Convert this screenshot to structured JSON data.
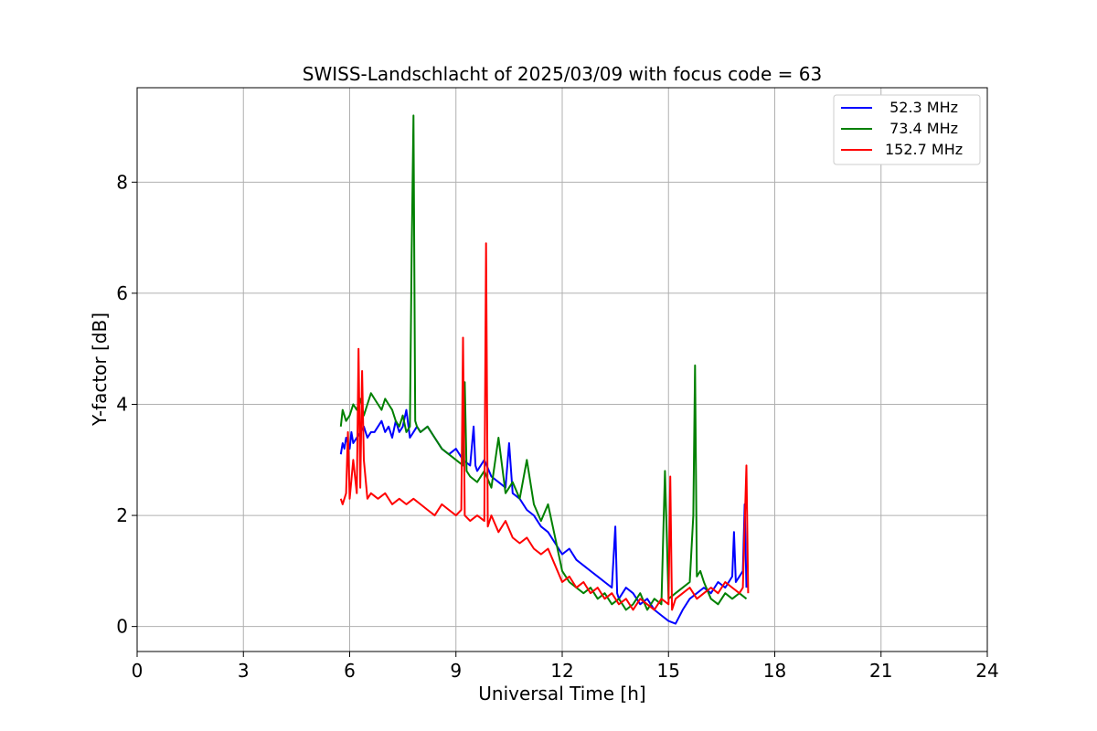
{
  "chart_data": {
    "type": "line",
    "title": "SWISS-Landschlacht of 2025/03/09 with focus code = 63",
    "xlabel": "Universal Time [h]",
    "ylabel": "Y-factor [dB]",
    "xlim": [
      0,
      24
    ],
    "ylim": [
      -0.45,
      9.7
    ],
    "xticks": [
      0,
      3,
      6,
      9,
      12,
      15,
      18,
      21,
      24
    ],
    "yticks": [
      0,
      2,
      4,
      6,
      8
    ],
    "grid": true,
    "legend_position": "top-right",
    "series": [
      {
        "name": " 52.3 MHz",
        "color": "#0000ff",
        "x": [
          5.75,
          5.8,
          5.85,
          5.9,
          5.95,
          6.0,
          6.05,
          6.1,
          6.2,
          6.3,
          6.4,
          6.5,
          6.6,
          6.7,
          6.8,
          6.9,
          7.0,
          7.1,
          7.2,
          7.3,
          7.4,
          7.5,
          7.6,
          7.7,
          7.8,
          7.9,
          8.0,
          8.2,
          8.4,
          8.6,
          8.8,
          9.0,
          9.2,
          9.4,
          9.5,
          9.55,
          9.6,
          9.8,
          10.0,
          10.2,
          10.4,
          10.5,
          10.6,
          10.8,
          11.0,
          11.2,
          11.4,
          11.6,
          11.8,
          12.0,
          12.2,
          12.4,
          12.6,
          12.8,
          13.0,
          13.2,
          13.4,
          13.5,
          13.55,
          13.6,
          13.8,
          14.0,
          14.2,
          14.4,
          14.6,
          14.8,
          15.0,
          15.2,
          15.4,
          15.6,
          15.8,
          16.0,
          16.2,
          16.4,
          16.6,
          16.8,
          16.85,
          16.9,
          17.0,
          17.1,
          17.15,
          17.2
        ],
        "y": [
          3.1,
          3.3,
          3.2,
          3.4,
          3.3,
          3.2,
          3.5,
          3.3,
          3.4,
          3.5,
          3.6,
          3.4,
          3.5,
          3.5,
          3.6,
          3.7,
          3.5,
          3.6,
          3.4,
          3.7,
          3.5,
          3.6,
          3.9,
          3.4,
          3.5,
          3.6,
          3.5,
          3.6,
          3.4,
          3.2,
          3.1,
          3.2,
          3.0,
          2.9,
          3.6,
          2.9,
          2.8,
          3.0,
          2.7,
          2.6,
          2.5,
          3.3,
          2.4,
          2.3,
          2.1,
          2.0,
          1.8,
          1.7,
          1.5,
          1.3,
          1.4,
          1.2,
          1.1,
          1.0,
          0.9,
          0.8,
          0.7,
          1.8,
          0.6,
          0.5,
          0.7,
          0.6,
          0.4,
          0.5,
          0.3,
          0.2,
          0.1,
          0.05,
          0.3,
          0.5,
          0.6,
          0.7,
          0.6,
          0.8,
          0.7,
          0.9,
          1.7,
          0.8,
          0.9,
          1.0,
          2.2,
          0.7
        ]
      },
      {
        "name": " 73.4 MHz",
        "color": "#008000",
        "x": [
          5.75,
          5.8,
          5.9,
          6.0,
          6.1,
          6.2,
          6.3,
          6.4,
          6.5,
          6.6,
          6.7,
          6.8,
          6.9,
          7.0,
          7.1,
          7.2,
          7.3,
          7.4,
          7.5,
          7.6,
          7.7,
          7.75,
          7.8,
          7.85,
          7.9,
          8.0,
          8.2,
          8.4,
          8.6,
          8.8,
          9.0,
          9.2,
          9.25,
          9.3,
          9.4,
          9.6,
          9.8,
          10.0,
          10.2,
          10.4,
          10.6,
          10.8,
          11.0,
          11.2,
          11.4,
          11.6,
          11.8,
          12.0,
          12.2,
          12.4,
          12.6,
          12.8,
          13.0,
          13.2,
          13.4,
          13.6,
          13.8,
          14.0,
          14.2,
          14.4,
          14.6,
          14.8,
          14.9,
          15.0,
          15.2,
          15.4,
          15.6,
          15.7,
          15.75,
          15.8,
          15.9,
          16.0,
          16.2,
          16.4,
          16.6,
          16.8,
          17.0,
          17.2
        ],
        "y": [
          3.6,
          3.9,
          3.7,
          3.8,
          4.0,
          3.9,
          4.1,
          3.8,
          4.0,
          4.2,
          4.1,
          4.0,
          3.9,
          4.1,
          4.0,
          3.9,
          3.7,
          3.6,
          3.8,
          3.5,
          3.6,
          6.7,
          9.2,
          3.7,
          3.6,
          3.5,
          3.6,
          3.4,
          3.2,
          3.1,
          3.0,
          2.9,
          4.4,
          2.8,
          2.7,
          2.6,
          2.8,
          2.5,
          3.4,
          2.4,
          2.6,
          2.3,
          3.0,
          2.2,
          1.9,
          2.2,
          1.6,
          1.0,
          0.8,
          0.7,
          0.6,
          0.7,
          0.5,
          0.6,
          0.4,
          0.5,
          0.3,
          0.4,
          0.6,
          0.3,
          0.5,
          0.4,
          2.8,
          0.5,
          0.6,
          0.7,
          0.8,
          2.0,
          4.7,
          0.9,
          1.0,
          0.8,
          0.5,
          0.4,
          0.6,
          0.5,
          0.6,
          0.5
        ]
      },
      {
        "name": "152.7 MHz",
        "color": "#ff0000",
        "x": [
          5.75,
          5.8,
          5.9,
          5.95,
          6.0,
          6.1,
          6.2,
          6.25,
          6.3,
          6.35,
          6.4,
          6.5,
          6.6,
          6.8,
          7.0,
          7.2,
          7.4,
          7.6,
          7.8,
          8.0,
          8.2,
          8.4,
          8.6,
          8.8,
          9.0,
          9.15,
          9.2,
          9.25,
          9.4,
          9.6,
          9.8,
          9.85,
          9.9,
          10.0,
          10.2,
          10.4,
          10.6,
          10.8,
          11.0,
          11.2,
          11.4,
          11.6,
          11.8,
          12.0,
          12.2,
          12.4,
          12.6,
          12.8,
          13.0,
          13.2,
          13.4,
          13.6,
          13.8,
          14.0,
          14.2,
          14.4,
          14.6,
          14.8,
          15.0,
          15.05,
          15.1,
          15.2,
          15.4,
          15.6,
          15.8,
          16.0,
          16.2,
          16.4,
          16.6,
          16.8,
          17.0,
          17.1,
          17.2,
          17.25
        ],
        "y": [
          2.3,
          2.2,
          2.4,
          3.5,
          2.3,
          3.0,
          2.4,
          5.0,
          2.5,
          4.6,
          3.0,
          2.3,
          2.4,
          2.3,
          2.4,
          2.2,
          2.3,
          2.2,
          2.3,
          2.2,
          2.1,
          2.0,
          2.2,
          2.1,
          2.0,
          2.1,
          5.2,
          2.0,
          1.9,
          2.0,
          1.9,
          6.9,
          1.8,
          2.0,
          1.7,
          1.9,
          1.6,
          1.5,
          1.6,
          1.4,
          1.3,
          1.4,
          1.1,
          0.8,
          0.9,
          0.7,
          0.8,
          0.6,
          0.7,
          0.5,
          0.6,
          0.4,
          0.5,
          0.3,
          0.5,
          0.4,
          0.3,
          0.5,
          0.4,
          2.7,
          0.3,
          0.5,
          0.6,
          0.7,
          0.5,
          0.6,
          0.7,
          0.6,
          0.8,
          0.7,
          0.6,
          0.7,
          2.9,
          0.6
        ]
      }
    ]
  }
}
